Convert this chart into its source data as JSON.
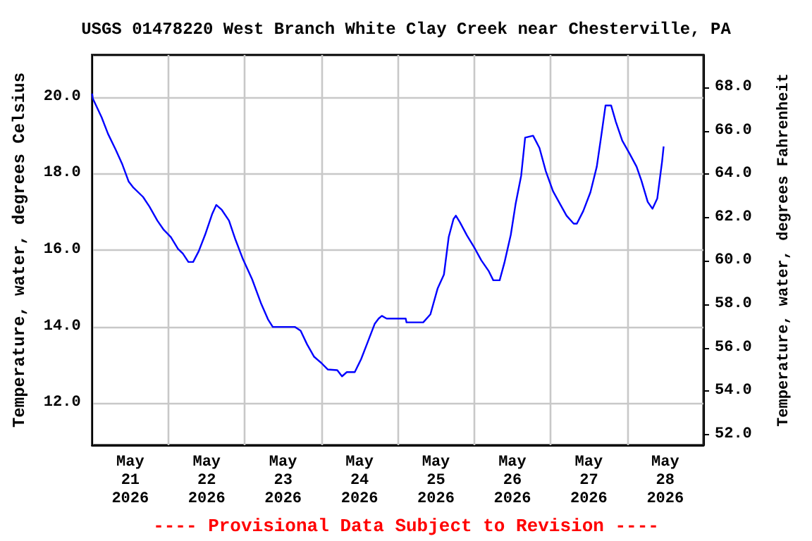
{
  "chart_data": {
    "type": "line",
    "title": "USGS 01478220 West Branch White Clay Creek near Chesterville, PA",
    "ylabel": "Temperature, water, degrees Celsius",
    "y2label": "Temperature, water, degrees Fahrenheit",
    "annotations": [
      "---- Provisional Data Subject to Revision ----"
    ],
    "xlim": [
      "2026-05-21T00:00",
      "2026-05-29T00:00"
    ],
    "xticks": [
      {
        "value": "2026-05-21T00:00",
        "label": null
      },
      {
        "value": "2026-05-21T12:00",
        "label": "May\n21\n2026"
      },
      {
        "value": "2026-05-22T00:00",
        "label": null
      },
      {
        "value": "2026-05-22T12:00",
        "label": "May\n22\n2026"
      },
      {
        "value": "2026-05-23T00:00",
        "label": null
      },
      {
        "value": "2026-05-23T12:00",
        "label": "May\n23\n2026"
      },
      {
        "value": "2026-05-24T00:00",
        "label": null
      },
      {
        "value": "2026-05-24T12:00",
        "label": "May\n24\n2026"
      },
      {
        "value": "2026-05-25T00:00",
        "label": null
      },
      {
        "value": "2026-05-25T12:00",
        "label": "May\n25\n2026"
      },
      {
        "value": "2026-05-26T00:00",
        "label": null
      },
      {
        "value": "2026-05-26T12:00",
        "label": "May\n26\n2026"
      },
      {
        "value": "2026-05-27T00:00",
        "label": null
      },
      {
        "value": "2026-05-27T12:00",
        "label": "May\n27\n2026"
      },
      {
        "value": "2026-05-28T00:00",
        "label": null
      },
      {
        "value": "2026-05-28T12:00",
        "label": "May\n28\n2026"
      },
      {
        "value": "2026-05-29T00:00",
        "label": null
      }
    ],
    "ylim": [
      10.9,
      21.1
    ],
    "yticks": [
      {
        "value": 12,
        "label": "12.0"
      },
      {
        "value": 14,
        "label": "14.0"
      },
      {
        "value": 16,
        "label": "16.0"
      },
      {
        "value": 18,
        "label": "18.0"
      },
      {
        "value": 20,
        "label": "20.0"
      }
    ],
    "y2lim": [
      51.5,
      69.5
    ],
    "y2ticks": [
      {
        "value": 52,
        "label": "52.0"
      },
      {
        "value": 54,
        "label": "54.0"
      },
      {
        "value": 56,
        "label": "56.0"
      },
      {
        "value": 58,
        "label": "58.0"
      },
      {
        "value": 60,
        "label": "60.0"
      },
      {
        "value": 62,
        "label": "62.0"
      },
      {
        "value": 64,
        "label": "64.0"
      },
      {
        "value": 66,
        "label": "66.0"
      },
      {
        "value": 68,
        "label": "68.0"
      }
    ],
    "grid": true,
    "marker": "none",
    "line_style": "solid",
    "x": [
      "2026-05-21T00:00",
      "2026-05-21T00:15",
      "2026-05-21T03:00",
      "2026-05-21T05:00",
      "2026-05-21T07:30",
      "2026-05-21T09:30",
      "2026-05-21T11:30",
      "2026-05-21T13:00",
      "2026-05-21T16:00",
      "2026-05-21T18:00",
      "2026-05-21T20:30",
      "2026-05-21T22:30",
      "2026-05-22T00:45",
      "2026-05-22T03:00",
      "2026-05-22T04:30",
      "2026-05-22T06:15",
      "2026-05-22T07:45",
      "2026-05-22T09:30",
      "2026-05-22T11:30",
      "2026-05-22T13:45",
      "2026-05-22T15:00",
      "2026-05-22T16:45",
      "2026-05-22T19:00",
      "2026-05-22T21:00",
      "2026-05-22T23:15",
      "2026-05-23T02:15",
      "2026-05-23T05:00",
      "2026-05-23T07:15",
      "2026-05-23T08:45",
      "2026-05-23T15:45",
      "2026-05-23T17:30",
      "2026-05-23T19:30",
      "2026-05-23T21:45",
      "2026-05-24T00:00",
      "2026-05-24T02:00",
      "2026-05-24T05:00",
      "2026-05-24T06:30",
      "2026-05-24T08:00",
      "2026-05-24T10:30",
      "2026-05-24T12:30",
      "2026-05-24T14:30",
      "2026-05-24T16:45",
      "2026-05-24T18:00",
      "2026-05-24T19:00",
      "2026-05-24T20:30",
      "2026-05-25T02:30",
      "2026-05-25T02:45",
      "2026-05-25T08:00",
      "2026-05-25T10:15",
      "2026-05-25T12:30",
      "2026-05-25T14:30",
      "2026-05-25T16:00",
      "2026-05-25T17:30",
      "2026-05-25T18:15",
      "2026-05-25T19:30",
      "2026-05-25T21:45",
      "2026-05-26T00:00",
      "2026-05-26T02:15",
      "2026-05-26T04:30",
      "2026-05-26T06:00",
      "2026-05-26T08:00",
      "2026-05-26T09:30",
      "2026-05-26T11:30",
      "2026-05-26T13:00",
      "2026-05-26T14:45",
      "2026-05-26T16:00",
      "2026-05-26T18:30",
      "2026-05-26T20:30",
      "2026-05-26T22:30",
      "2026-05-27T00:45",
      "2026-05-27T03:00",
      "2026-05-27T05:00",
      "2026-05-27T07:15",
      "2026-05-27T08:15",
      "2026-05-27T10:15",
      "2026-05-27T12:30",
      "2026-05-27T14:30",
      "2026-05-27T16:00",
      "2026-05-27T17:15",
      "2026-05-27T19:00",
      "2026-05-27T20:30",
      "2026-05-27T22:30",
      "2026-05-28T00:45",
      "2026-05-28T03:00",
      "2026-05-28T04:30",
      "2026-05-28T06:30",
      "2026-05-28T08:00",
      "2026-05-28T09:30",
      "2026-05-28T11:00",
      "2026-05-28T11:30"
    ],
    "series": [
      {
        "color": "#0000ff",
        "values": [
          20.09,
          19.96,
          19.47,
          19.04,
          18.61,
          18.24,
          17.79,
          17.63,
          17.39,
          17.14,
          16.77,
          16.53,
          16.34,
          16.03,
          15.91,
          15.69,
          15.69,
          15.97,
          16.4,
          16.95,
          17.18,
          17.05,
          16.77,
          16.28,
          15.79,
          15.24,
          14.62,
          14.19,
          13.99,
          13.99,
          13.89,
          13.54,
          13.21,
          13.05,
          12.88,
          12.86,
          12.7,
          12.81,
          12.81,
          13.15,
          13.58,
          14.07,
          14.21,
          14.28,
          14.21,
          14.21,
          14.11,
          14.11,
          14.32,
          14.99,
          15.36,
          16.34,
          16.81,
          16.9,
          16.73,
          16.38,
          16.07,
          15.73,
          15.46,
          15.21,
          15.21,
          15.67,
          16.4,
          17.2,
          17.94,
          18.94,
          18.99,
          18.67,
          18.06,
          17.54,
          17.2,
          16.9,
          16.69,
          16.69,
          17.02,
          17.51,
          18.18,
          19.04,
          19.78,
          19.78,
          19.35,
          18.86,
          18.53,
          18.18,
          17.82,
          17.26,
          17.08,
          17.35,
          18.31,
          18.71
        ]
      }
    ]
  }
}
